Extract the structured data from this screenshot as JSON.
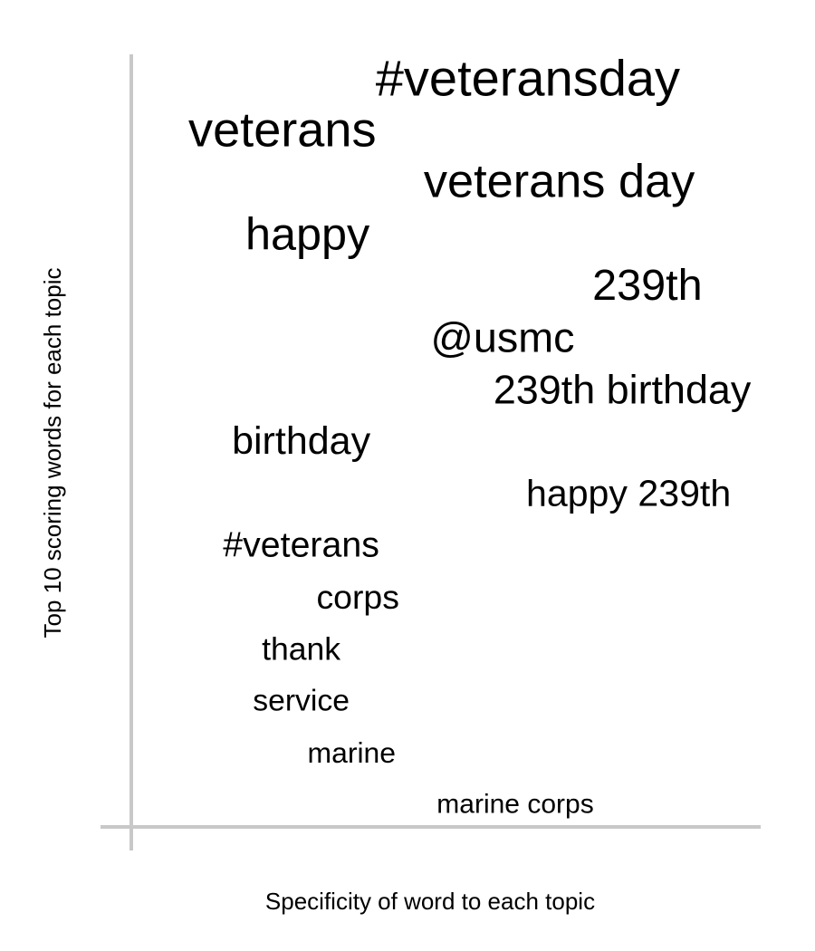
{
  "chart_data": {
    "type": "scatter",
    "xlabel": "Specificity of word to each topic",
    "ylabel": "Top 10 scoring words for each topic",
    "axis_color": "#c8c8c8",
    "text_color": "#000000",
    "words": [
      {
        "label": "#veteransday",
        "x": 0.63,
        "rank": 1
      },
      {
        "label": "veterans",
        "x": 0.24,
        "rank": 2
      },
      {
        "label": "veterans day",
        "x": 0.68,
        "rank": 3
      },
      {
        "label": "happy",
        "x": 0.28,
        "rank": 4
      },
      {
        "label": "239th",
        "x": 0.82,
        "rank": 5
      },
      {
        "label": "@usmc",
        "x": 0.59,
        "rank": 6
      },
      {
        "label": "239th birthday",
        "x": 0.78,
        "rank": 7
      },
      {
        "label": "birthday",
        "x": 0.27,
        "rank": 8
      },
      {
        "label": "happy 239th",
        "x": 0.79,
        "rank": 9
      },
      {
        "label": "#veterans",
        "x": 0.27,
        "rank": 10
      },
      {
        "label": "corps",
        "x": 0.36,
        "rank": 11
      },
      {
        "label": "thank",
        "x": 0.27,
        "rank": 12
      },
      {
        "label": "service",
        "x": 0.27,
        "rank": 13
      },
      {
        "label": "marine",
        "x": 0.35,
        "rank": 14
      },
      {
        "label": "marine corps",
        "x": 0.61,
        "rank": 15
      }
    ]
  }
}
